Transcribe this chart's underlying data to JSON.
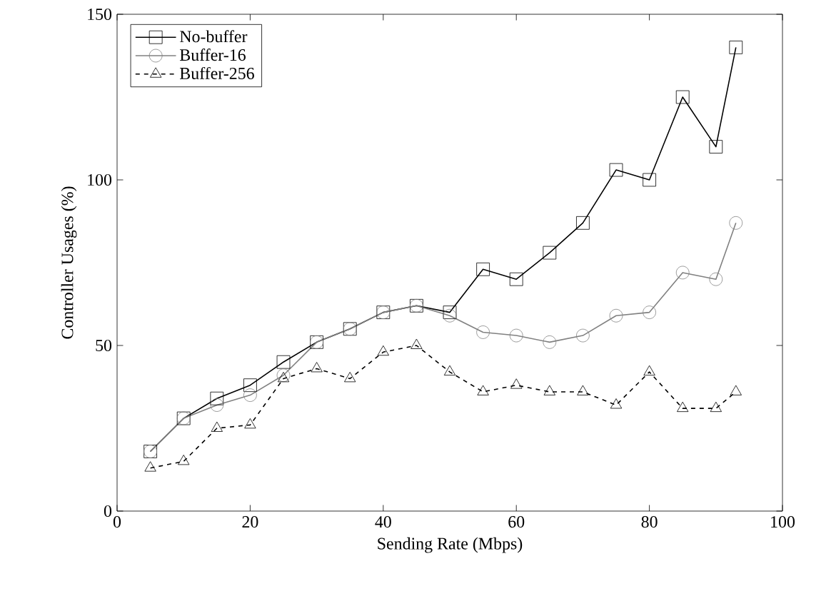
{
  "chart_data": {
    "type": "line",
    "xlabel": "Sending Rate (Mbps)",
    "ylabel": "Controller Usages (%)",
    "x": [
      5,
      10,
      15,
      20,
      25,
      30,
      35,
      40,
      45,
      50,
      55,
      60,
      65,
      70,
      75,
      80,
      85,
      90,
      93
    ],
    "series": [
      {
        "name": "No-buffer",
        "color": "#000000",
        "marker": "square",
        "line_style": "solid",
        "values": [
          18,
          28,
          34,
          38,
          45,
          51,
          55,
          60,
          62,
          60,
          73,
          70,
          78,
          87,
          103,
          100,
          125,
          110,
          140
        ]
      },
      {
        "name": "Buffer-16",
        "color": "#808080",
        "marker": "circle",
        "line_style": "solid",
        "values": [
          18,
          28,
          32,
          35,
          41,
          51,
          55,
          60,
          62,
          59,
          54,
          53,
          51,
          53,
          59,
          60,
          72,
          70,
          87
        ]
      },
      {
        "name": "Buffer-256",
        "color": "#000000",
        "marker": "triangle",
        "line_style": "dashed",
        "values": [
          13,
          15,
          25,
          26,
          40,
          43,
          40,
          48,
          50,
          42,
          36,
          38,
          36,
          36,
          32,
          42,
          31,
          31,
          36
        ]
      }
    ],
    "xlim": [
      0,
      100
    ],
    "ylim": [
      0,
      150
    ],
    "xticks": [
      0,
      20,
      40,
      60,
      80,
      100
    ],
    "yticks": [
      0,
      50,
      100,
      150
    ],
    "grid": false,
    "legend": "top left"
  }
}
